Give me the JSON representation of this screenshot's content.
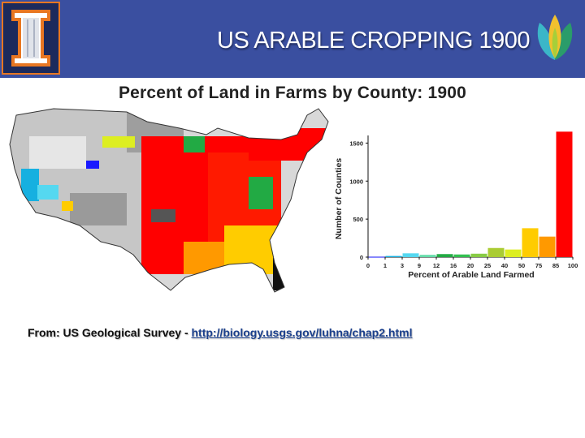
{
  "slide": {
    "title": "US ARABLE CROPPING 1900",
    "figure_title": "Percent of Land in Farms by County: 1900",
    "source_prefix": "From: US Geological Survey - ",
    "source_link": "http://biology.usgs.gov/luhna/chap2.html"
  },
  "icons": {
    "university_logo": "illinois-block-i-icon",
    "brand_mark": "leaf-petals-icon"
  },
  "colors": {
    "header": "#3a4fa0",
    "logo_border": "#e87722",
    "bin_colors": [
      "#1a1aff",
      "#16b0e0",
      "#55d8f0",
      "#66ddaa",
      "#22aa44",
      "#33c050",
      "#88cc44",
      "#aacc33",
      "#ddee22",
      "#ffcc00",
      "#ff9900",
      "#ff0000"
    ]
  },
  "chart_data": {
    "type": "bar",
    "title": "",
    "xlabel": "Percent of Arable Land Farmed",
    "ylabel": "Number of Counties",
    "x_ticks": [
      "0",
      "1",
      "3",
      "9",
      "12",
      "16",
      "20",
      "25",
      "40",
      "50",
      "75",
      "85",
      "100"
    ],
    "y_ticks": [
      "0",
      "500",
      "1000",
      "1500"
    ],
    "ylim": [
      0,
      1600
    ],
    "categories": [
      "0-1",
      "1-3",
      "3-9",
      "9-12",
      "12-16",
      "16-20",
      "20-25",
      "25-40",
      "40-50",
      "50-75",
      "75-85",
      "85-100"
    ],
    "values": [
      5,
      15,
      50,
      30,
      40,
      35,
      45,
      120,
      100,
      380,
      270,
      1650
    ],
    "grid": false
  }
}
